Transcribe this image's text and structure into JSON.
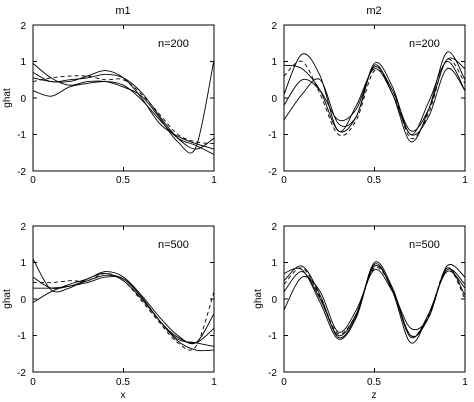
{
  "chart_data": [
    {
      "type": "line",
      "title": "m1",
      "xlabel": "",
      "ylabel": "ghat",
      "annotation": "n=200",
      "xlim": [
        0,
        1
      ],
      "ylim": [
        -2,
        2
      ],
      "xticks": [
        "0",
        "0.5",
        "1"
      ],
      "yticks": [
        "2",
        "1",
        "0",
        "-1",
        "-2"
      ],
      "grid": false,
      "x": [
        0,
        0.1,
        0.2,
        0.3,
        0.4,
        0.5,
        0.6,
        0.7,
        0.8,
        0.9,
        1.0
      ],
      "series": [
        {
          "values": [
            0.95,
            0.55,
            0.35,
            0.45,
            0.45,
            0.3,
            0.05,
            -0.55,
            -1.2,
            -1.35,
            1.05
          ]
        },
        {
          "values": [
            0.55,
            0.45,
            0.45,
            0.6,
            0.75,
            0.55,
            0.0,
            -0.7,
            -1.05,
            -1.25,
            -1.4
          ]
        },
        {
          "values": [
            0.2,
            0.05,
            0.3,
            0.4,
            0.45,
            0.35,
            -0.05,
            -0.6,
            -1.1,
            -1.3,
            -1.55
          ]
        },
        {
          "values": [
            0.7,
            0.45,
            0.5,
            0.55,
            0.65,
            0.55,
            0.15,
            -0.5,
            -1.1,
            -1.4,
            -1.1
          ]
        },
        {
          "values": [
            0.45,
            0.55,
            0.6,
            0.6,
            0.5,
            0.5,
            0.1,
            -0.45,
            -1.0,
            -1.2,
            -1.25
          ]
        }
      ]
    },
    {
      "type": "line",
      "title": "m2",
      "xlabel": "",
      "ylabel": "",
      "annotation": "n=200",
      "xlim": [
        0,
        1
      ],
      "ylim": [
        -2,
        2
      ],
      "xticks": [
        "0",
        "0.5",
        "1"
      ],
      "yticks": [
        "2",
        "1",
        "0",
        "-1",
        "-2"
      ],
      "grid": false,
      "x": [
        0,
        0.1,
        0.2,
        0.3,
        0.4,
        0.5,
        0.6,
        0.7,
        0.8,
        0.9,
        1.0
      ],
      "series": [
        {
          "values": [
            0.1,
            1.2,
            0.6,
            -0.9,
            -0.2,
            0.8,
            0.1,
            -1.2,
            -0.3,
            1.25,
            0.5
          ]
        },
        {
          "values": [
            0.9,
            0.8,
            0.2,
            -0.9,
            -0.5,
            0.95,
            0.3,
            -1.0,
            -0.1,
            1.0,
            0.2
          ]
        },
        {
          "values": [
            -0.2,
            0.5,
            0.2,
            -0.6,
            -0.3,
            0.85,
            0.2,
            -0.9,
            -0.3,
            1.05,
            0.8
          ]
        },
        {
          "values": [
            -0.6,
            0.1,
            0.5,
            -0.7,
            -0.5,
            0.9,
            0.1,
            -1.0,
            -0.5,
            0.8,
            0.2
          ]
        },
        {
          "values": [
            0.6,
            1.0,
            0.1,
            -1.0,
            -0.6,
            0.75,
            0.2,
            -1.1,
            -0.4,
            1.05,
            0.4
          ]
        }
      ]
    },
    {
      "type": "line",
      "title": "",
      "xlabel": "x",
      "ylabel": "ghat",
      "annotation": "n=500",
      "xlim": [
        0,
        1
      ],
      "ylim": [
        -2,
        2
      ],
      "xticks": [
        "0",
        "0.5",
        "1"
      ],
      "yticks": [
        "2",
        "1",
        "0",
        "-1",
        "-2"
      ],
      "grid": false,
      "x": [
        0,
        0.1,
        0.2,
        0.3,
        0.4,
        0.5,
        0.6,
        0.7,
        0.8,
        0.9,
        1.0
      ],
      "series": [
        {
          "values": [
            1.1,
            0.25,
            0.3,
            0.55,
            0.7,
            0.5,
            0.0,
            -0.6,
            -1.1,
            -1.2,
            -1.3
          ]
        },
        {
          "values": [
            0.6,
            0.3,
            0.35,
            0.5,
            0.65,
            0.55,
            0.05,
            -0.6,
            -1.05,
            -1.2,
            -0.8
          ]
        },
        {
          "values": [
            -0.1,
            0.2,
            0.4,
            0.55,
            0.75,
            0.6,
            0.1,
            -0.5,
            -1.0,
            -1.2,
            -0.4
          ]
        },
        {
          "values": [
            0.3,
            0.3,
            0.35,
            0.45,
            0.6,
            0.55,
            0.05,
            -0.6,
            -1.15,
            -1.4,
            -1.4
          ]
        },
        {
          "values": [
            0.45,
            0.45,
            0.5,
            0.5,
            0.7,
            0.5,
            -0.05,
            -0.65,
            -1.2,
            -1.3,
            0.2
          ]
        }
      ]
    },
    {
      "type": "line",
      "title": "",
      "xlabel": "z",
      "ylabel": "ghat",
      "annotation": "n=500",
      "xlim": [
        0,
        1
      ],
      "ylim": [
        -2,
        2
      ],
      "xticks": [
        "0",
        "0.5",
        "1"
      ],
      "yticks": [
        "2",
        "1",
        "0",
        "-1",
        "-2"
      ],
      "grid": false,
      "x": [
        0,
        0.1,
        0.2,
        0.3,
        0.4,
        0.5,
        0.6,
        0.7,
        0.8,
        0.9,
        1.0
      ],
      "series": [
        {
          "values": [
            0.2,
            0.75,
            0.0,
            -1.0,
            -0.4,
            0.9,
            0.25,
            -1.05,
            -0.4,
            0.8,
            0.4
          ]
        },
        {
          "values": [
            0.5,
            0.9,
            0.1,
            -1.05,
            -0.45,
            1.0,
            0.3,
            -1.0,
            -0.5,
            0.9,
            0.6
          ]
        },
        {
          "values": [
            -0.3,
            0.6,
            0.2,
            -0.9,
            -0.3,
            0.8,
            0.2,
            -0.8,
            -0.5,
            0.85,
            0.1
          ]
        },
        {
          "values": [
            0.7,
            0.8,
            -0.1,
            -1.1,
            -0.5,
            0.95,
            0.2,
            -1.2,
            -0.4,
            0.75,
            0.3
          ]
        },
        {
          "values": [
            0.4,
            0.85,
            0.05,
            -0.95,
            -0.4,
            0.85,
            0.25,
            -1.0,
            -0.45,
            0.85,
            0.0
          ]
        }
      ]
    }
  ]
}
